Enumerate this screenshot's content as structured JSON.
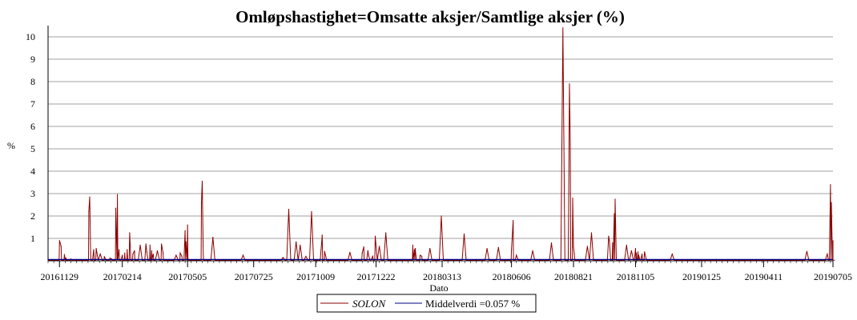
{
  "chart_data": {
    "type": "line",
    "title": "Omløpshastighet=Omsatte aksjer/Samtlige aksjer (%)",
    "xlabel": "Dato",
    "ylabel": "%",
    "ylim": [
      0,
      10.5
    ],
    "y_ticks": [
      1,
      2,
      3,
      4,
      5,
      6,
      7,
      8,
      9,
      10
    ],
    "x_range": [
      "2016-11-15",
      "2019-07-05"
    ],
    "x_ticks": [
      "20161129",
      "20170214",
      "20170505",
      "20170725",
      "20171009",
      "20171222",
      "20180313",
      "20180606",
      "20180821",
      "20181105",
      "20190125",
      "20190411",
      "20190705"
    ],
    "grid": true,
    "legend_position": "bottom-center",
    "series": [
      {
        "name": "SOLON",
        "style": "italic",
        "color": "#8b0000",
        "baseline": 0.03,
        "x": [
          "2016-11-29",
          "2016-12-01",
          "2016-12-05",
          "2016-12-06",
          "2016-12-07",
          "2016-12-09",
          "2016-12-12",
          "2016-12-13",
          "2016-12-16",
          "2017-01-04",
          "2017-01-05",
          "2017-01-06",
          "2017-01-10",
          "2017-01-13",
          "2017-01-18",
          "2017-01-23",
          "2017-01-25",
          "2017-01-30",
          "2017-02-01",
          "2017-02-06",
          "2017-02-08",
          "2017-02-10",
          "2017-02-14",
          "2017-02-17",
          "2017-02-20",
          "2017-02-23",
          "2017-02-27",
          "2017-03-01",
          "2017-03-08",
          "2017-03-15",
          "2017-03-16",
          "2017-03-20",
          "2017-03-22",
          "2017-03-23",
          "2017-03-24",
          "2017-03-29",
          "2017-04-03",
          "2017-04-05",
          "2017-04-21",
          "2017-04-26",
          "2017-04-28",
          "2017-05-02",
          "2017-05-03",
          "2017-05-05",
          "2017-05-22",
          "2017-05-23",
          "2017-05-24",
          "2017-06-05",
          "2017-07-12",
          "2017-08-30",
          "2017-09-06",
          "2017-09-15",
          "2017-09-20",
          "2017-09-27",
          "2017-10-04",
          "2017-10-17",
          "2017-10-20",
          "2017-11-20",
          "2017-12-05",
          "2017-12-07",
          "2017-12-12",
          "2017-12-13",
          "2017-12-18",
          "2017-12-21",
          "2017-12-26",
          "2018-01-03",
          "2018-02-05",
          "2018-02-07",
          "2018-02-08",
          "2018-02-14",
          "2018-02-16",
          "2018-02-26",
          "2018-03-12",
          "2018-04-09",
          "2018-05-07",
          "2018-05-21",
          "2018-06-06",
          "2018-06-08",
          "2018-06-12",
          "2018-07-02",
          "2018-07-25",
          "2018-08-08",
          "2018-08-16",
          "2018-08-17",
          "2018-08-20",
          "2018-08-21",
          "2018-08-22",
          "2018-09-07",
          "2018-09-12",
          "2018-10-03",
          "2018-10-04",
          "2018-10-08",
          "2018-10-10",
          "2018-10-11",
          "2018-10-25",
          "2018-10-31",
          "2018-11-05",
          "2018-11-06",
          "2018-11-08",
          "2018-11-09",
          "2018-11-13",
          "2018-11-16",
          "2018-12-20",
          "2019-06-03",
          "2019-06-28",
          "2019-07-02",
          "2019-07-03",
          "2019-07-05"
        ],
        "values": [
          0.9,
          0.65,
          0.28,
          0.08,
          0.12,
          0.05,
          0.04,
          0.08,
          0.05,
          2.2,
          2.85,
          0.7,
          0.5,
          0.55,
          0.3,
          0.18,
          0.05,
          0.12,
          0.08,
          2.35,
          2.95,
          0.5,
          0.25,
          0.35,
          0.5,
          1.25,
          0.3,
          0.45,
          0.7,
          0.75,
          0.4,
          0.7,
          0.45,
          0.2,
          0.3,
          0.45,
          0.75,
          0.35,
          0.25,
          0.35,
          0.2,
          1.35,
          0.85,
          1.6,
          2.6,
          3.55,
          0.65,
          1.05,
          0.25,
          0.15,
          2.3,
          0.85,
          0.7,
          0.2,
          2.2,
          1.15,
          0.42,
          0.38,
          0.35,
          0.62,
          0.45,
          0.22,
          0.2,
          1.1,
          0.65,
          1.25,
          0.7,
          0.5,
          0.55,
          0.25,
          0.2,
          0.55,
          2.0,
          1.2,
          0.55,
          0.6,
          0.5,
          1.8,
          0.25,
          0.45,
          0.8,
          10.4,
          7.9,
          5.2,
          2.8,
          0.6,
          0.3,
          0.65,
          1.25,
          1.1,
          0.9,
          0.8,
          2.1,
          2.75,
          0.7,
          0.45,
          0.55,
          0.35,
          0.4,
          0.25,
          0.3,
          0.4,
          0.3,
          0.42,
          0.3,
          3.4,
          2.6,
          0.9
        ]
      },
      {
        "name": "Middelverdi =0.057 %",
        "color": "#00008b",
        "values": [
          0.057
        ]
      }
    ]
  }
}
